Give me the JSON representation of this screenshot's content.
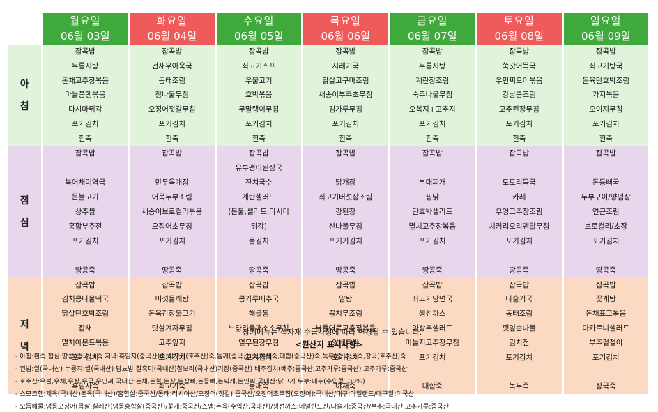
{
  "days": [
    {
      "name": "월요일",
      "date": "06월 03일",
      "color": "green"
    },
    {
      "name": "화요일",
      "date": "06월 04일",
      "color": "red"
    },
    {
      "name": "수요일",
      "date": "06월 05일",
      "color": "green"
    },
    {
      "name": "목요일",
      "date": "06월 06일",
      "color": "red"
    },
    {
      "name": "금요일",
      "date": "06월 07일",
      "color": "green"
    },
    {
      "name": "토요일",
      "date": "06월 08일",
      "color": "red"
    },
    {
      "name": "일요일",
      "date": "06월 09일",
      "color": "green"
    }
  ],
  "meals": [
    {
      "label": [
        "아",
        "침"
      ],
      "days": [
        [
          "잡곡밥",
          "누룽지탕",
          "돈채고추장볶음",
          "마늘쫑햄볶음",
          "다시마튀각",
          "포기김치",
          "흰죽"
        ],
        [
          "잡곡밥",
          "건새우아욱국",
          "동태조림",
          "참나물무침",
          "오징어젓갈무침",
          "포기김치",
          "흰죽"
        ],
        [
          "잡곡밥",
          "쇠고기스프",
          "우불고기",
          "호박볶음",
          "무말랭이무침",
          "포기김치",
          "흰죽"
        ],
        [
          "잡곡밥",
          "시래기국",
          "닭살고구마조림",
          "새송이부추초무침",
          "김가루무침",
          "포기김치",
          "흰죽"
        ],
        [
          "잡곡밥",
          "누룽지탕",
          "계란장조림",
          "숙주나물무침",
          "오복지+고추지",
          "포기김치",
          "흰죽"
        ],
        [
          "잡곡밥",
          "쑥갓어묵국",
          "우민찌오이볶음",
          "강낭콩조림",
          "고추된장무침",
          "포기김치",
          "흰죽"
        ],
        [
          "잡곡밥",
          "쇠고기탕국",
          "돈육단호박조림",
          "가지볶음",
          "오이지무침",
          "포기김치",
          "흰죽"
        ]
      ]
    },
    {
      "label": [
        "점",
        "심"
      ],
      "days": [
        [
          "잡곡밥",
          "",
          "북어채미역국",
          "돈불고기",
          "상추쌈",
          "홍합부추전",
          "포기김치",
          "",
          "땅콩죽"
        ],
        [
          "잡곡밥",
          "",
          "만두육개장",
          "어묵두부조림",
          "새송이브로컬리볶음",
          "오징어초무침",
          "포기김치",
          "",
          "땅콩죽"
        ],
        [
          "잡곡밥",
          "유부팽이된장국",
          "잔치국수",
          "계란샐러드",
          "(돈불,샐러드,다시마",
          "튀각)",
          "물김치",
          "",
          "땅콩죽"
        ],
        [
          "잡곡밥",
          "",
          "닭개장",
          "쇠고기버섯장조림",
          "강된장",
          "산나물무침",
          "포기기김치",
          "",
          "땅콩죽"
        ],
        [
          "잡곡밥",
          "",
          "부대찌개",
          "찜닭",
          "단호박샐러드",
          "멸치고추장볶음",
          "포기김치",
          "",
          "땅콩죽"
        ],
        [
          "잡곡밥",
          "",
          "도토리묵국",
          "카레",
          "우엉고추장조림",
          "치커리오리엔탈무침",
          "포기김치",
          "",
          "땅콩죽"
        ],
        [
          "잡곡밥",
          "",
          "돈등뼈국",
          "두부구이/양념장",
          "연근조림",
          "브로컬리/초장",
          "포기김치",
          "",
          "땅콩죽"
        ]
      ]
    },
    {
      "label": [
        "저",
        "녁"
      ],
      "days": [
        [
          "잡곡밥",
          "김치콩나물떡국",
          "닭살단호박조림",
          "잡채",
          "멸치아몬드볶음",
          "포기김치",
          "",
          "흑임자죽"
        ],
        [
          "잡곡밥",
          "버섯들깨탕",
          "돈육간장불고기",
          "맛살겨자무침",
          "고추잎지",
          "포기김치",
          "",
          "쇠고기죽"
        ],
        [
          "잡곡밥",
          "콩가루배추국",
          "해물찜",
          "느타리들깨소스무침",
          "열무된장무침",
          "포기김치",
          "",
          "들깨죽"
        ],
        [
          "잡곡밥",
          "알탕",
          "꽁치무조림",
          "부들어묵고추장볶음",
          "양배추쌈",
          "포기김치",
          "",
          "야채죽"
        ],
        [
          "잡곡밥",
          "쇠고기당면국",
          "생선까스",
          "양상추샐러드",
          "마늘지고추장무침",
          "포기김치",
          "",
          "대합죽"
        ],
        [
          "잡곡밥",
          "다슬기국",
          "동태조림",
          "깻잎순나물",
          "김치전",
          "포기김치",
          "",
          "녹두죽"
        ],
        [
          "잡곡밥",
          "꽃게탕",
          "돈채표고볶음",
          "마카로니샐러드",
          "부추겉절이",
          "포기김치",
          "",
          "장국죽"
        ]
      ]
    }
  ],
  "notice": "* 상기메뉴는 식자재 수급사정에 따라 변경될 수 있습니다.",
  "origin_title": "<원산지 표시사항>",
  "origin_lines": [
    "- 아침:흰죽 점심:땅콩(중국산)죽 저녁:흑임자(중국산)죽,쇠고기(호주산)죽,들깨(중국산)죽,야채죽,대합(중국산)죽,녹두(중국산)죽,장국(호주산)죽",
    "- 흰밥:쌀(국내산) 누룽지:쌀(국내산) 당뇨밥:찰흑미(국내산)찰보리(국내산)기장(중국산) 배추김치(배추:중국산,고추가루:중국산) 고추가루:중국산",
    "- 호주산:우불,우채,우장,우국,우민찌 국내산:돈채,돈불,돈장,돈잡뼈,돈등뼈,돈찌개,돈민찌 국내산:닭고기 두부:대두(수입콩100%)",
    "- 스모크햄:계육(국내산)돈육(국내산)/홍합살:중국산/동태:러시아산/오징어(젓갈):중국산/오징어초무침(오징어):국내산/대구:아일랜드/대구알:미국산",
    "- 모듬해물:냉동오징어(몸살:칠레산)냉동홍합살(중국산)/꽃게:중국산/스팸:돈육(수입산,국내산)/생선까스:네덜란드산/다슬기:중국산/부추:국내산,고추가루:중국산"
  ]
}
